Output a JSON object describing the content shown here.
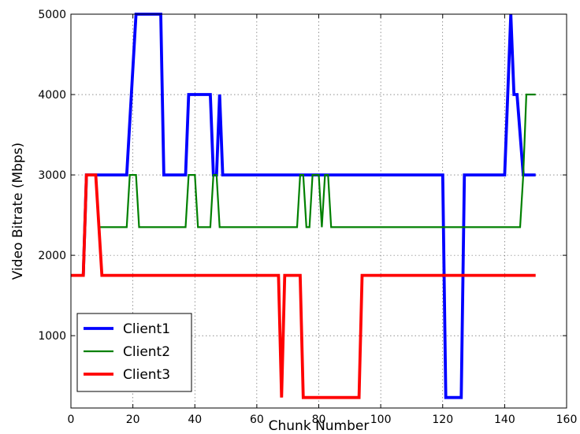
{
  "chart_data": {
    "type": "line",
    "xlabel": "Chunk Number",
    "ylabel": "Video Bitrate (Mbps)",
    "xlim": [
      0,
      160
    ],
    "ylim": [
      100,
      5000
    ],
    "xticks": [
      0,
      20,
      40,
      60,
      80,
      100,
      120,
      140,
      160
    ],
    "yticks": [
      1000,
      2000,
      3000,
      4000,
      5000
    ],
    "grid": true,
    "legend_position": "bottom-left",
    "series": [
      {
        "name": "Client1",
        "color": "#0000ff",
        "points": [
          [
            4,
            1750
          ],
          [
            5,
            3000
          ],
          [
            18,
            3000
          ],
          [
            21,
            5000
          ],
          [
            29,
            5000
          ],
          [
            30,
            3000
          ],
          [
            37,
            3000
          ],
          [
            38,
            4000
          ],
          [
            45,
            4000
          ],
          [
            46,
            3000
          ],
          [
            47,
            3000
          ],
          [
            48,
            4000
          ],
          [
            49,
            3000
          ],
          [
            120,
            3000
          ],
          [
            121,
            230
          ],
          [
            126,
            230
          ],
          [
            127,
            3000
          ],
          [
            140,
            3000
          ],
          [
            142,
            5000
          ],
          [
            143,
            4000
          ],
          [
            144,
            4000
          ],
          [
            146,
            3000
          ],
          [
            150,
            3000
          ]
        ]
      },
      {
        "name": "Client2",
        "color": "#008000",
        "points": [
          [
            4,
            1750
          ],
          [
            5,
            3000
          ],
          [
            8,
            3000
          ],
          [
            9,
            2350
          ],
          [
            18,
            2350
          ],
          [
            19,
            3000
          ],
          [
            21,
            3000
          ],
          [
            22,
            2350
          ],
          [
            37,
            2350
          ],
          [
            38,
            3000
          ],
          [
            40,
            3000
          ],
          [
            41,
            2350
          ],
          [
            45,
            2350
          ],
          [
            46,
            3000
          ],
          [
            47,
            3000
          ],
          [
            48,
            2350
          ],
          [
            73,
            2350
          ],
          [
            74,
            3000
          ],
          [
            75,
            3000
          ],
          [
            76,
            2350
          ],
          [
            77,
            2350
          ],
          [
            78,
            3000
          ],
          [
            80,
            3000
          ],
          [
            81,
            2350
          ],
          [
            82,
            3000
          ],
          [
            83,
            3000
          ],
          [
            84,
            2350
          ],
          [
            145,
            2350
          ],
          [
            146,
            3000
          ],
          [
            147,
            4000
          ],
          [
            150,
            4000
          ]
        ]
      },
      {
        "name": "Client3",
        "color": "#ff0000",
        "points": [
          [
            0,
            1750
          ],
          [
            4,
            1750
          ],
          [
            5,
            3000
          ],
          [
            8,
            3000
          ],
          [
            10,
            1750
          ],
          [
            67,
            1750
          ],
          [
            68,
            230
          ],
          [
            69,
            1750
          ],
          [
            74,
            1750
          ],
          [
            75,
            230
          ],
          [
            93,
            230
          ],
          [
            94,
            1750
          ],
          [
            150,
            1750
          ]
        ]
      }
    ]
  }
}
